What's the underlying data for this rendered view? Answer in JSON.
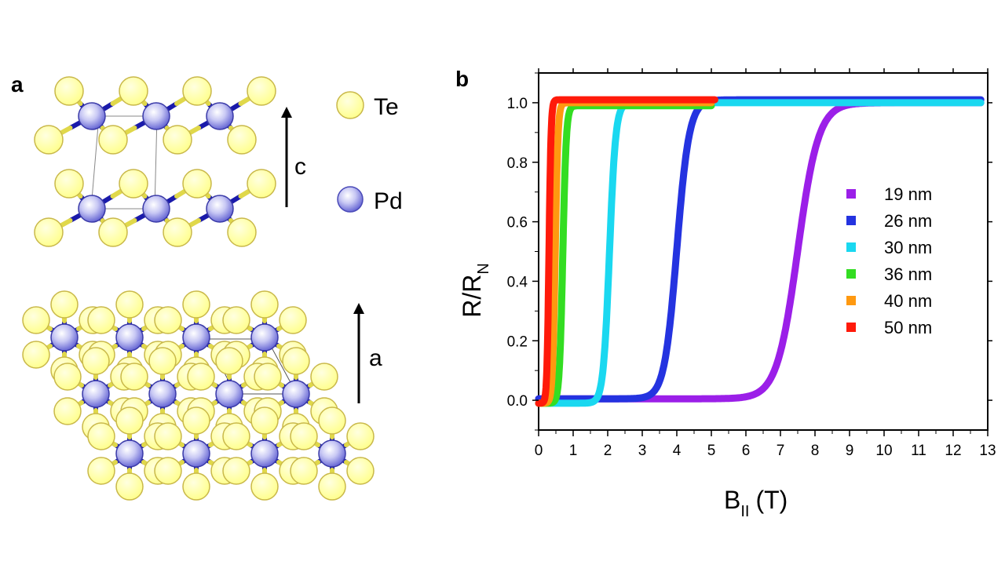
{
  "panel_a": {
    "label": "a",
    "legend": [
      {
        "name": "Te",
        "icon": "te-atom-icon"
      },
      {
        "name": "Pd",
        "icon": "pd-atom-icon"
      }
    ],
    "axis_c": "c",
    "axis_a": "a",
    "colors": {
      "te": "#ffff99",
      "te_edge": "#d4c34a",
      "pd": "#8080e0",
      "bond": "#1a1aaa"
    }
  },
  "panel_b": {
    "label": "b"
  },
  "chart_data": {
    "type": "line",
    "xlabel_main": "B",
    "xlabel_sub": "II",
    "xlabel_unit": "(T)",
    "ylabel_main": "R/R",
    "ylabel_sub": "N",
    "xlim": [
      0,
      13
    ],
    "ylim": [
      -0.1,
      1.1
    ],
    "xticks": [
      0,
      1,
      2,
      3,
      4,
      5,
      6,
      7,
      8,
      9,
      10,
      11,
      12,
      13
    ],
    "yticks": [
      0.0,
      0.2,
      0.4,
      0.6,
      0.8,
      1.0
    ],
    "ytick_labels": [
      "0.0",
      "0.2",
      "0.4",
      "0.6",
      "0.8",
      "1.0"
    ],
    "legend_position": "right",
    "series": [
      {
        "name": "19 nm",
        "color": "#9b1fe8",
        "bc": 7.5,
        "width": 0.3,
        "xmax": 12.8,
        "low": 0.005,
        "high": 1.0
      },
      {
        "name": "26 nm",
        "color": "#2433e0",
        "bc": 4.0,
        "width": 0.18,
        "xmax": 12.8,
        "low": 0.005,
        "high": 1.01
      },
      {
        "name": "30 nm",
        "color": "#1ad8f0",
        "bc": 2.05,
        "width": 0.09,
        "xmax": 12.8,
        "low": -0.01,
        "high": 1.0
      },
      {
        "name": "36 nm",
        "color": "#33dd22",
        "bc": 0.7,
        "width": 0.05,
        "xmax": 5.0,
        "low": -0.01,
        "high": 0.99
      },
      {
        "name": "40 nm",
        "color": "#ff9910",
        "bc": 0.48,
        "width": 0.04,
        "xmax": 5.0,
        "low": -0.01,
        "high": 1.0
      },
      {
        "name": "50 nm",
        "color": "#ff1a0a",
        "bc": 0.3,
        "width": 0.03,
        "xmax": 5.1,
        "low": -0.01,
        "high": 1.01
      }
    ]
  }
}
